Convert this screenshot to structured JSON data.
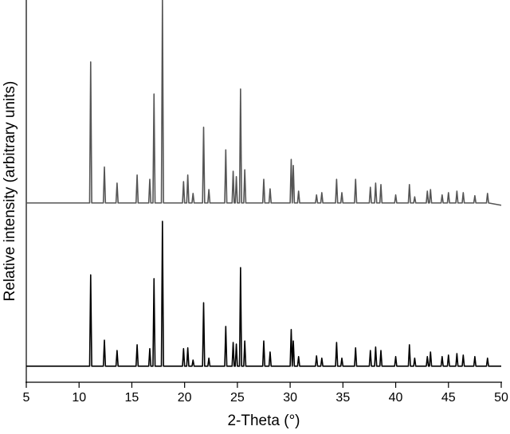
{
  "chart_data": {
    "type": "line",
    "x_label": "2-Theta (°)",
    "y_label": "Relative intensity (arbitrary units)",
    "xlim": [
      5,
      50
    ],
    "xticks": [
      5,
      10,
      15,
      20,
      25,
      30,
      35,
      40,
      45,
      50
    ],
    "ylim": [
      0,
      100
    ],
    "x": [
      5,
      11.0,
      11.1,
      11.2,
      12.3,
      12.4,
      12.5,
      13.5,
      13.6,
      13.7,
      15.4,
      15.5,
      15.6,
      16.6,
      16.7,
      16.8,
      17.0,
      17.1,
      17.2,
      17.8,
      17.9,
      18.0,
      19.8,
      19.9,
      20.0,
      20.2,
      20.3,
      20.4,
      20.7,
      20.8,
      20.9,
      21.7,
      21.8,
      21.9,
      22.2,
      22.3,
      22.4,
      23.8,
      23.9,
      24.0,
      24.5,
      24.6,
      24.7,
      24.8,
      24.9,
      25.0,
      25.2,
      25.3,
      25.4,
      25.6,
      25.7,
      25.8,
      27.4,
      27.5,
      27.6,
      28.0,
      28.1,
      28.2,
      30.0,
      30.1,
      30.2,
      30.2,
      30.3,
      30.4,
      30.7,
      30.8,
      30.9,
      32.4,
      32.5,
      32.6,
      32.9,
      33.0,
      33.1,
      34.3,
      34.4,
      34.5,
      34.8,
      34.9,
      35.0,
      36.1,
      36.2,
      36.3,
      37.5,
      37.6,
      37.7,
      38.0,
      38.1,
      38.2,
      38.5,
      38.6,
      38.7,
      39.9,
      40.0,
      40.1,
      41.2,
      41.3,
      41.4,
      41.7,
      41.8,
      41.9,
      42.9,
      43.0,
      43.1,
      43.2,
      43.3,
      43.4,
      44.3,
      44.4,
      44.5,
      44.9,
      45.0,
      45.1,
      45.7,
      45.8,
      45.9,
      46.3,
      46.4,
      46.5,
      47.4,
      47.5,
      47.6,
      48.6,
      48.7,
      48.8,
      50
    ],
    "series": [
      {
        "color": "#555555",
        "values": [
          46.9,
          46.9,
          83.8,
          46.9,
          46.9,
          56.3,
          46.9,
          46.9,
          52.1,
          46.9,
          46.9,
          54.2,
          46.9,
          46.9,
          53.1,
          46.9,
          46.9,
          75.4,
          46.9,
          46.9,
          100,
          46.9,
          46.9,
          52.5,
          46.9,
          46.9,
          54.2,
          46.9,
          46.9,
          49.4,
          46.9,
          46.9,
          66.7,
          46.9,
          46.9,
          50.4,
          46.9,
          46.9,
          60.8,
          46.9,
          46.9,
          55.2,
          46.9,
          46.9,
          53.8,
          46.9,
          46.9,
          76.7,
          46.9,
          46.9,
          55.6,
          46.9,
          46.9,
          53.1,
          46.9,
          46.9,
          50.6,
          46.9,
          46.9,
          58.3,
          46.9,
          46.9,
          56.7,
          46.9,
          46.9,
          50.0,
          46.9,
          46.9,
          49.0,
          46.9,
          46.9,
          49.6,
          46.9,
          46.9,
          53.1,
          46.9,
          46.9,
          49.6,
          46.9,
          46.9,
          53.1,
          46.9,
          46.9,
          51.0,
          46.9,
          46.9,
          52.1,
          46.9,
          46.9,
          51.7,
          46.9,
          46.9,
          49.0,
          46.9,
          46.9,
          51.7,
          46.9,
          46.9,
          48.5,
          46.9,
          46.9,
          50.0,
          46.9,
          46.9,
          50.4,
          46.9,
          46.9,
          49.0,
          46.9,
          46.9,
          49.6,
          46.9,
          46.9,
          50.0,
          46.9,
          46.9,
          49.6,
          46.9,
          46.9,
          48.8,
          46.9,
          46.9,
          49.4,
          46.9,
          46.3
        ]
      },
      {
        "color": "#000000",
        "values": [
          4.2,
          4.2,
          28.1,
          4.2,
          4.2,
          11.0,
          4.2,
          4.2,
          8.3,
          4.2,
          4.2,
          9.8,
          4.2,
          4.2,
          8.8,
          4.2,
          4.2,
          27.1,
          4.2,
          4.2,
          42.1,
          4.2,
          4.2,
          8.8,
          4.2,
          4.2,
          9.0,
          4.2,
          4.2,
          5.8,
          4.2,
          4.2,
          20.8,
          4.2,
          4.2,
          6.3,
          4.2,
          4.2,
          14.6,
          4.2,
          4.2,
          10.4,
          4.2,
          4.2,
          10.0,
          4.2,
          4.2,
          30.0,
          4.2,
          4.2,
          10.8,
          4.2,
          4.2,
          10.8,
          4.2,
          4.2,
          7.9,
          4.2,
          4.2,
          13.8,
          4.2,
          4.2,
          10.8,
          4.2,
          4.2,
          6.7,
          4.2,
          4.2,
          6.9,
          4.2,
          4.2,
          6.3,
          4.2,
          4.2,
          10.4,
          4.2,
          4.2,
          6.3,
          4.2,
          4.2,
          9.0,
          4.2,
          4.2,
          8.3,
          4.2,
          4.2,
          9.2,
          4.2,
          4.2,
          8.3,
          4.2,
          4.2,
          6.7,
          4.2,
          4.2,
          9.8,
          4.2,
          4.2,
          6.3,
          4.2,
          4.2,
          6.7,
          4.2,
          4.2,
          7.9,
          4.2,
          4.2,
          6.7,
          4.2,
          4.2,
          7.1,
          4.2,
          4.2,
          7.5,
          4.2,
          4.2,
          7.1,
          4.2,
          4.2,
          6.7,
          4.2,
          4.2,
          6.3,
          4.2,
          4.2
        ]
      }
    ]
  }
}
